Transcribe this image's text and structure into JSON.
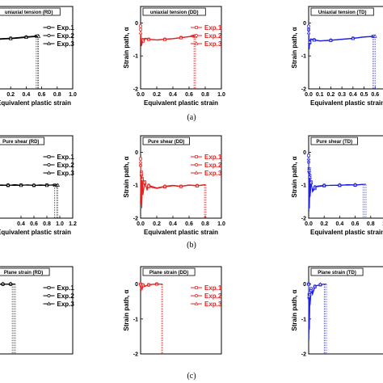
{
  "captions": [
    "(a)",
    "(b)",
    "(c)"
  ],
  "colors": {
    "RD": "#000000",
    "DD": "#e8201f",
    "TD": "#1f1fe0"
  },
  "chart_data": [
    {
      "type": "line",
      "title": "uniaxial tension (RD)",
      "xlabel": "Equivalent plastic strain",
      "ylabel": "",
      "xlim": [
        0,
        1.0
      ],
      "ylim": [
        -2,
        0.5
      ],
      "xticks": [
        "0.2",
        "0.4",
        "0.6",
        "0.8",
        "1.0"
      ],
      "yticks": [],
      "series": [
        {
          "name": "Exp.1",
          "x": [
            0.0,
            0.1,
            0.2,
            0.3,
            0.4,
            0.5,
            0.53
          ],
          "y": [
            -0.5,
            -0.48,
            -0.47,
            -0.45,
            -0.43,
            -0.41,
            -0.4
          ]
        },
        {
          "name": "Exp.2",
          "x": [
            0.0,
            0.1,
            0.2,
            0.3,
            0.4,
            0.5,
            0.55
          ],
          "y": [
            -0.49,
            -0.47,
            -0.46,
            -0.44,
            -0.42,
            -0.4,
            -0.39
          ]
        },
        {
          "name": "Exp.3",
          "x": [
            0.0,
            0.1,
            0.2,
            0.3,
            0.4,
            0.5,
            0.56
          ],
          "y": [
            -0.51,
            -0.49,
            -0.48,
            -0.46,
            -0.44,
            -0.42,
            -0.41
          ]
        }
      ],
      "failure_x": [
        0.53,
        0.55,
        0.56
      ]
    },
    {
      "type": "line",
      "title": "uniaxial tension (DD)",
      "xlabel": "Equivalent plastic strain",
      "ylabel": "Strain path, α",
      "xlim": [
        0,
        1.0
      ],
      "ylim": [
        -2,
        0.5
      ],
      "xticks": [
        "0.0",
        "0.2",
        "0.4",
        "0.6",
        "0.8",
        "1.0"
      ],
      "yticks": [
        "0",
        "-1",
        "-2"
      ],
      "series": [
        {
          "name": "Exp.1",
          "x": [
            0.0,
            0.01,
            0.03,
            0.06,
            0.1,
            0.2,
            0.3,
            0.4,
            0.5,
            0.6,
            0.66
          ],
          "y": [
            -0.1,
            -0.7,
            -0.55,
            -0.48,
            -0.5,
            -0.52,
            -0.5,
            -0.48,
            -0.45,
            -0.42,
            -0.4
          ]
        },
        {
          "name": "Exp.2",
          "x": [
            0.0,
            0.01,
            0.03,
            0.06,
            0.1,
            0.2,
            0.3,
            0.4,
            0.5,
            0.6,
            0.67
          ],
          "y": [
            -0.2,
            -0.6,
            -0.5,
            -0.46,
            -0.49,
            -0.51,
            -0.49,
            -0.47,
            -0.44,
            -0.41,
            -0.39
          ]
        },
        {
          "name": "Exp.3",
          "x": [
            0.0,
            0.01,
            0.03,
            0.06,
            0.1,
            0.2,
            0.3,
            0.4,
            0.5,
            0.6,
            0.68
          ],
          "y": [
            -0.3,
            -0.65,
            -0.52,
            -0.47,
            -0.5,
            -0.52,
            -0.5,
            -0.48,
            -0.45,
            -0.42,
            -0.41
          ]
        }
      ],
      "failure_x": [
        0.66,
        0.67,
        0.68
      ]
    },
    {
      "type": "line",
      "title": "Uniaxial tension (TD)",
      "xlabel": "Equivalent plastic strain",
      "ylabel": "Strain path, α",
      "xlim": [
        0,
        0.7
      ],
      "ylim": [
        -2,
        0.5
      ],
      "xticks": [
        "0.0",
        "0.1",
        "0.2",
        "0.3",
        "0.4",
        "0.5",
        "0.6"
      ],
      "yticks": [
        "0",
        "-1",
        "-2"
      ],
      "series": [
        {
          "name": "",
          "x": [
            0.0,
            0.005,
            0.01,
            0.02,
            0.05,
            0.1,
            0.2,
            0.3,
            0.4,
            0.5,
            0.58
          ],
          "y": [
            -0.2,
            -0.8,
            -0.6,
            -0.5,
            -0.52,
            -0.55,
            -0.53,
            -0.5,
            -0.47,
            -0.43,
            -0.41
          ]
        },
        {
          "name": "",
          "x": [
            0.0,
            0.005,
            0.01,
            0.02,
            0.05,
            0.1,
            0.2,
            0.3,
            0.4,
            0.5,
            0.59
          ],
          "y": [
            -0.1,
            -0.7,
            -0.55,
            -0.48,
            -0.51,
            -0.54,
            -0.52,
            -0.49,
            -0.46,
            -0.42,
            -0.4
          ]
        },
        {
          "name": "",
          "x": [
            0.0,
            0.005,
            0.01,
            0.02,
            0.05,
            0.1,
            0.2,
            0.3,
            0.4,
            0.5,
            0.6
          ],
          "y": [
            -0.3,
            -0.75,
            -0.58,
            -0.49,
            -0.52,
            -0.55,
            -0.53,
            -0.5,
            -0.47,
            -0.43,
            -0.41
          ]
        }
      ],
      "failure_x": [
        0.58,
        0.59,
        0.6
      ]
    },
    {
      "type": "line",
      "title": "Pure shear (RD)",
      "xlabel": "Equivalent plastic strain",
      "ylabel": "",
      "xlim": [
        0,
        1.2
      ],
      "ylim": [
        -2,
        0.5
      ],
      "xticks": [
        "0.4",
        "0.6",
        "0.8",
        "1.0",
        "1.2"
      ],
      "yticks": [],
      "series": [
        {
          "name": "Exp.1",
          "x": [
            0.0,
            0.1,
            0.2,
            0.3,
            0.4,
            0.5,
            0.6,
            0.7,
            0.8,
            0.9,
            0.92
          ],
          "y": [
            -1.0,
            -0.99,
            -1.01,
            -0.98,
            -1.0,
            -0.99,
            -1.01,
            -0.99,
            -1.0,
            -0.99,
            -1.0
          ]
        },
        {
          "name": "Exp.2",
          "x": [
            0.0,
            0.1,
            0.2,
            0.3,
            0.4,
            0.5,
            0.6,
            0.7,
            0.8,
            0.9,
            0.95
          ],
          "y": [
            -1.01,
            -1.0,
            -0.99,
            -1.01,
            -0.99,
            -1.0,
            -1.0,
            -1.01,
            -0.99,
            -1.0,
            -1.01
          ]
        },
        {
          "name": "Exp.3",
          "x": [
            0.0,
            0.1,
            0.2,
            0.3,
            0.4,
            0.5,
            0.6,
            0.7,
            0.8,
            0.9,
            0.97
          ],
          "y": [
            -0.99,
            -1.01,
            -1.0,
            -1.0,
            -1.01,
            -0.99,
            -1.0,
            -1.0,
            -1.01,
            -0.99,
            -1.0
          ]
        }
      ],
      "failure_x": [
        0.92,
        0.95,
        0.97
      ]
    },
    {
      "type": "line",
      "title": "Pure shear (DD)",
      "xlabel": "Equivalent plastic strain",
      "ylabel": "Strain path, α",
      "xlim": [
        0,
        1.0
      ],
      "ylim": [
        -2,
        0.5
      ],
      "xticks": [
        "0.0",
        "0.2",
        "0.4",
        "0.6",
        "0.8",
        "1.0"
      ],
      "yticks": [
        "0",
        "-1",
        "-2"
      ],
      "series": [
        {
          "name": "Exp.1",
          "x": [
            0.0,
            0.005,
            0.01,
            0.015,
            0.02,
            0.03,
            0.05,
            0.08,
            0.1,
            0.2,
            0.3,
            0.4,
            0.5,
            0.6,
            0.7,
            0.79
          ],
          "y": [
            -0.2,
            -1.6,
            -0.6,
            -1.5,
            -0.8,
            -1.3,
            -0.9,
            -1.15,
            -1.05,
            -1.1,
            -1.05,
            -1.02,
            -1.04,
            -1.0,
            -1.02,
            -0.99
          ]
        },
        {
          "name": "Exp.2",
          "x": [
            0.0,
            0.005,
            0.01,
            0.015,
            0.02,
            0.03,
            0.05,
            0.08,
            0.1,
            0.2,
            0.3,
            0.4,
            0.5,
            0.6,
            0.7,
            0.8
          ],
          "y": [
            -0.4,
            -1.4,
            -0.7,
            -1.7,
            -0.85,
            -1.2,
            -0.95,
            -1.1,
            -1.0,
            -1.08,
            -1.03,
            -1.0,
            -1.03,
            -0.99,
            -1.01,
            -0.98
          ]
        },
        {
          "name": "Exp.3",
          "x": [
            0.0,
            0.005,
            0.01,
            0.015,
            0.02,
            0.03,
            0.05,
            0.08,
            0.1,
            0.2,
            0.3,
            0.4,
            0.5,
            0.6,
            0.7,
            0.81
          ],
          "y": [
            -0.3,
            -1.5,
            -0.65,
            -1.6,
            -0.82,
            -1.25,
            -0.92,
            -1.12,
            -1.02,
            -1.09,
            -1.04,
            -1.01,
            -1.04,
            -1.0,
            -1.02,
            -0.99
          ]
        }
      ],
      "failure_x": [
        0.79,
        0.8,
        0.81
      ]
    },
    {
      "type": "line",
      "title": "Pure shear (TD)",
      "xlabel": "Equivalent plastic strain",
      "ylabel": "Strain path, α",
      "xlim": [
        0,
        1.0
      ],
      "ylim": [
        -2,
        0.5
      ],
      "xticks": [
        "0.0",
        "0.2",
        "0.4",
        "0.6",
        "0.8",
        "1.0"
      ],
      "yticks": [
        "0",
        "-1",
        "-2"
      ],
      "series": [
        {
          "name": "",
          "x": [
            0.0,
            0.003,
            0.006,
            0.01,
            0.015,
            0.02,
            0.03,
            0.05,
            0.08,
            0.1,
            0.2,
            0.3,
            0.4,
            0.5,
            0.6,
            0.7
          ],
          "y": [
            -0.1,
            -1.8,
            -0.5,
            -1.5,
            -0.7,
            -1.35,
            -0.9,
            -1.2,
            -1.1,
            -1.05,
            -1.02,
            -1.0,
            -1.01,
            -0.99,
            -1.0,
            -0.98
          ]
        },
        {
          "name": "",
          "x": [
            0.0,
            0.003,
            0.006,
            0.01,
            0.015,
            0.02,
            0.03,
            0.05,
            0.08,
            0.1,
            0.2,
            0.3,
            0.4,
            0.5,
            0.6,
            0.72
          ],
          "y": [
            -0.3,
            -1.6,
            -0.6,
            -1.7,
            -0.8,
            -1.25,
            -0.95,
            -1.15,
            -1.05,
            -1.03,
            -1.0,
            -1.01,
            -0.99,
            -1.0,
            -0.99,
            -0.97
          ]
        },
        {
          "name": "",
          "x": [
            0.0,
            0.003,
            0.006,
            0.01,
            0.015,
            0.02,
            0.03,
            0.05,
            0.08,
            0.1,
            0.2,
            0.3,
            0.4,
            0.5,
            0.6,
            0.74
          ],
          "y": [
            -0.2,
            -1.7,
            -0.55,
            -1.6,
            -0.75,
            -1.3,
            -0.92,
            -1.18,
            -1.08,
            -1.04,
            -1.01,
            -1.0,
            -1.0,
            -0.98,
            -0.99,
            -0.97
          ]
        }
      ],
      "failure_x": [
        0.7,
        0.72,
        0.74
      ]
    },
    {
      "type": "line",
      "title": "Plane strain (RD)",
      "xlabel": "",
      "ylabel": "",
      "xlim": [
        0,
        1.0
      ],
      "ylim": [
        -2,
        0.5
      ],
      "xticks": [],
      "yticks": [],
      "series": [
        {
          "name": "Exp.1",
          "x": [
            0.0,
            0.05,
            0.1,
            0.15,
            0.2,
            0.22
          ],
          "y": [
            0.0,
            0.0,
            0.0,
            0.0,
            0.0,
            0.0
          ]
        },
        {
          "name": "Exp.2",
          "x": [
            0.0,
            0.05,
            0.1,
            0.15,
            0.2,
            0.24
          ],
          "y": [
            -0.01,
            0.0,
            -0.01,
            0.0,
            -0.01,
            0.0
          ]
        },
        {
          "name": "Exp.3",
          "x": [
            0.0,
            0.05,
            0.1,
            0.15,
            0.2,
            0.26
          ],
          "y": [
            0.01,
            0.0,
            0.01,
            0.0,
            0.01,
            0.0
          ]
        }
      ],
      "failure_x": [
        0.22,
        0.24,
        0.26
      ]
    },
    {
      "type": "line",
      "title": "Plane strain (DD)",
      "xlabel": "",
      "ylabel": "Strain path, α",
      "xlim": [
        0,
        1.0
      ],
      "ylim": [
        -2,
        0.5
      ],
      "xticks": [],
      "yticks": [
        "0",
        "-1",
        "-2"
      ],
      "series": [
        {
          "name": "Exp.1",
          "x": [
            0.0,
            0.005,
            0.01,
            0.02,
            0.03,
            0.05,
            0.1,
            0.15,
            0.2,
            0.26
          ],
          "y": [
            0.0,
            -0.15,
            -0.05,
            -0.12,
            -0.03,
            -0.06,
            -0.02,
            -0.01,
            0.0,
            0.0
          ]
        },
        {
          "name": "Exp.2",
          "x": [
            0.0,
            0.005,
            0.01,
            0.02,
            0.03,
            0.05,
            0.1,
            0.15,
            0.2,
            0.27
          ],
          "y": [
            0.0,
            -0.2,
            -0.08,
            -0.15,
            -0.05,
            -0.07,
            -0.03,
            -0.01,
            0.0,
            0.0
          ]
        },
        {
          "name": "Exp.3",
          "x": [
            0.0,
            0.005,
            0.01,
            0.02,
            0.03,
            0.05,
            0.1,
            0.15,
            0.2,
            0.27
          ],
          "y": [
            0.0,
            -0.1,
            -0.04,
            -0.1,
            -0.02,
            -0.05,
            -0.02,
            0.0,
            0.0,
            0.0
          ]
        }
      ],
      "failure_x": [
        0.26,
        0.27,
        0.27
      ]
    },
    {
      "type": "line",
      "title": "Plane strain (TD)",
      "xlabel": "",
      "ylabel": "Strain path, α",
      "xlim": [
        0,
        1.0
      ],
      "ylim": [
        -2,
        0.5
      ],
      "xticks": [],
      "yticks": [
        "0",
        "-1",
        "-2"
      ],
      "series": [
        {
          "name": "",
          "x": [
            0.0,
            0.003,
            0.006,
            0.01,
            0.015,
            0.02,
            0.03,
            0.05,
            0.08,
            0.1,
            0.15,
            0.2
          ],
          "y": [
            0.0,
            -1.6,
            -0.3,
            -1.0,
            -0.2,
            -0.6,
            -0.15,
            -0.3,
            -0.08,
            -0.05,
            -0.02,
            0.0
          ]
        },
        {
          "name": "",
          "x": [
            0.0,
            0.003,
            0.006,
            0.01,
            0.015,
            0.02,
            0.03,
            0.05,
            0.08,
            0.1,
            0.15,
            0.21
          ],
          "y": [
            0.0,
            -1.2,
            -0.4,
            -1.3,
            -0.25,
            -0.5,
            -0.12,
            -0.25,
            -0.06,
            -0.04,
            -0.02,
            0.0
          ]
        },
        {
          "name": "",
          "x": [
            0.0,
            0.003,
            0.006,
            0.01,
            0.015,
            0.02,
            0.03,
            0.05,
            0.08,
            0.1,
            0.15,
            0.23
          ],
          "y": [
            0.0,
            -1.4,
            -0.35,
            -1.1,
            -0.3,
            -0.55,
            -0.18,
            -0.28,
            -0.07,
            -0.05,
            -0.01,
            0.0
          ]
        }
      ],
      "failure_x": [
        0.2,
        0.21,
        0.23
      ]
    }
  ]
}
